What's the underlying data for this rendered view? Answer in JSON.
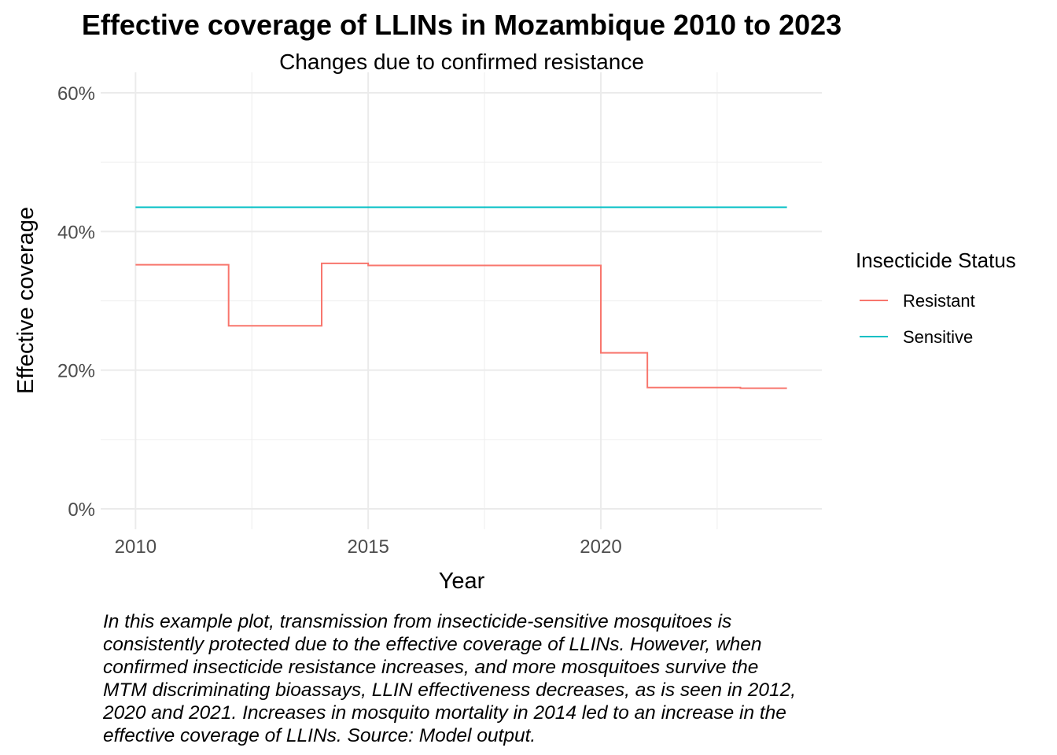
{
  "chart_data": {
    "type": "line",
    "step": true,
    "title": "Effective coverage of LLINs in Mozambique 2010 to 2023",
    "subtitle": "Changes due to confirmed resistance",
    "xlabel": "Year",
    "ylabel": "Effective coverage",
    "xlim": [
      2009.25,
      2024.75
    ],
    "ylim": [
      0,
      0.6
    ],
    "x_ticks": [
      2010,
      2015,
      2020
    ],
    "x_tick_labels": [
      "2010",
      "2015",
      "2020"
    ],
    "y_ticks": [
      0,
      0.2,
      0.4,
      0.6
    ],
    "y_tick_labels": [
      "0%",
      "20%",
      "40%",
      "60%"
    ],
    "grid": true,
    "legend": {
      "title": "Insecticide Status",
      "position": "right"
    },
    "series": [
      {
        "name": "Resistant",
        "color": "#F8766D",
        "x": [
          2010,
          2011,
          2012,
          2013,
          2014,
          2015,
          2016,
          2017,
          2018,
          2019,
          2020,
          2021,
          2022,
          2023,
          2024
        ],
        "values": [
          0.352,
          0.352,
          0.264,
          0.264,
          0.354,
          0.351,
          0.351,
          0.351,
          0.351,
          0.351,
          0.225,
          0.175,
          0.175,
          0.174,
          0.174
        ]
      },
      {
        "name": "Sensitive",
        "color": "#00BFC4",
        "x": [
          2010,
          2011,
          2012,
          2013,
          2014,
          2015,
          2016,
          2017,
          2018,
          2019,
          2020,
          2021,
          2022,
          2023,
          2024
        ],
        "values": [
          0.435,
          0.435,
          0.435,
          0.435,
          0.435,
          0.435,
          0.435,
          0.435,
          0.435,
          0.435,
          0.435,
          0.435,
          0.435,
          0.435,
          0.435
        ]
      }
    ],
    "caption_lines": [
      "In this example plot, transmission from insecticide-sensitive mosquitoes is",
      "consistently protected due to the effective coverage of LLINs. However, when",
      "confirmed insecticide resistance increases, and more mosquitoes survive the",
      "MTM discriminating bioassays, LLIN effectiveness decreases, as is seen in 2012,",
      "2020 and 2021. Increases in mosquito mortality in 2014 led to an increase in the",
      "effective coverage of LLINs. Source: Model output."
    ]
  }
}
